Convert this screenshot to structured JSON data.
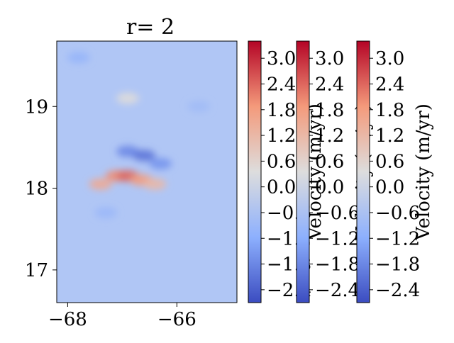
{
  "chart_data": {
    "type": "heatmap",
    "title": "r= 2",
    "xlabel": "",
    "ylabel": "",
    "xlim": [
      -68.2,
      -64.9
    ],
    "ylim": [
      16.6,
      19.8
    ],
    "x_ticks": [
      -68,
      -66
    ],
    "x_tick_labels": [
      "−68",
      "−66"
    ],
    "y_ticks": [
      17,
      18,
      19
    ],
    "y_tick_labels": [
      "17",
      "18",
      "19"
    ],
    "colormap": "coolwarm",
    "colors": {
      "low": "#3b4cc0",
      "mid": "#dddddd",
      "high": "#b40426",
      "background": "#b0c6f5"
    },
    "color_range": [
      -2.7,
      3.4
    ],
    "grid": false,
    "field_description_hidden": true,
    "hotspots": [
      {
        "x": -67.4,
        "y": 18.05,
        "value": 1.5
      },
      {
        "x": -67.1,
        "y": 18.15,
        "value": 2.0
      },
      {
        "x": -66.9,
        "y": 18.15,
        "value": 2.4
      },
      {
        "x": -66.65,
        "y": 18.1,
        "value": 1.8
      },
      {
        "x": -66.4,
        "y": 18.05,
        "value": 1.2
      },
      {
        "x": -66.9,
        "y": 18.45,
        "value": -1.8
      },
      {
        "x": -66.6,
        "y": 18.4,
        "value": -2.1
      },
      {
        "x": -66.3,
        "y": 18.3,
        "value": -1.6
      },
      {
        "x": -67.8,
        "y": 19.6,
        "value": -1.0
      },
      {
        "x": -65.6,
        "y": 19.0,
        "value": -0.8
      },
      {
        "x": -67.3,
        "y": 17.7,
        "value": -0.9
      },
      {
        "x": -66.9,
        "y": 19.1,
        "value": 0.4
      }
    ],
    "colorbars": [
      {
        "label": "Velocity (m/yr)",
        "ticks": [
          3.0,
          2.4,
          1.8,
          1.2,
          0.6,
          0.0,
          -0.6,
          -1.2,
          -1.8,
          -2.4
        ],
        "tick_labels": [
          "3.0",
          "2.4",
          "1.8",
          "1.2",
          "0.6",
          "0.0",
          "−0.6",
          "−1.2",
          "−1.8",
          "−2.4"
        ]
      },
      {
        "label": "Velocity (m/yr)",
        "ticks": [
          3.0,
          2.4,
          1.8,
          1.2,
          0.6,
          0.0,
          -0.6,
          -1.2,
          -1.8,
          -2.4
        ],
        "tick_labels": [
          "3.0",
          "2.4",
          "1.8",
          "1.2",
          "0.6",
          "0.0",
          "−0.6",
          "−1.2",
          "−1.8",
          "−2.4"
        ]
      },
      {
        "label": "Velocity (m/yr)",
        "ticks": [
          3.0,
          2.4,
          1.8,
          1.2,
          0.6,
          0.0,
          -0.6,
          -1.2,
          -1.8,
          -2.4
        ],
        "tick_labels": [
          "3.0",
          "2.4",
          "1.8",
          "1.2",
          "0.6",
          "0.0",
          "−0.6",
          "−1.2",
          "−1.8",
          "−2.4"
        ]
      }
    ]
  }
}
